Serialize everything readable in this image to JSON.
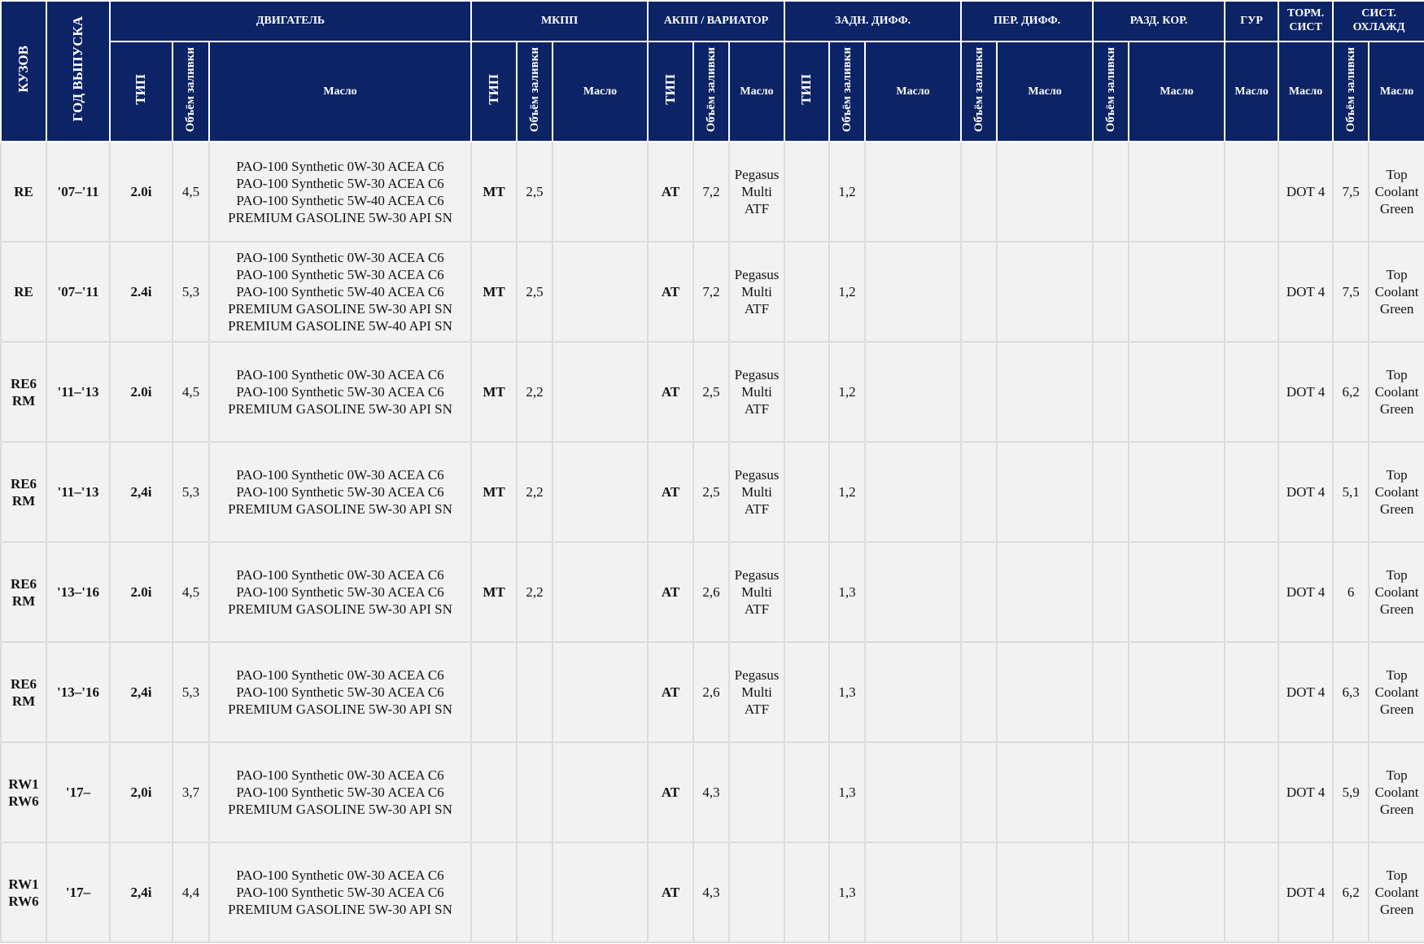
{
  "headers": {
    "kuzov": "КУЗОВ",
    "god": "ГОД ВЫПУСКА",
    "dvigatel": "ДВИГАТЕЛЬ",
    "mkpp": "МКПП",
    "akpp": "АКПП / ВАРИАТОР",
    "zadn": "ЗАДН. ДИФФ.",
    "per": "ПЕР. ДИФФ.",
    "razd": "РАЗД. КОР.",
    "gur": "ГУР",
    "torm_1": "ТОРМ.",
    "torm_2": "СИСТ",
    "sist_1": "СИСТ.",
    "sist_2": "ОХЛАЖД",
    "tip": "ТИП",
    "obem": "Объём заливки",
    "maslo": "Масло"
  },
  "rows": [
    {
      "kuzov": [
        "RE"
      ],
      "god": "'07–'11",
      "dv_tip": "2.0i",
      "dv_obem": "4,5",
      "dv_oil": [
        "PAO-100 Synthetic 0W-30 ACEA C6",
        "PAO-100 Synthetic 5W-30 ACEA C6",
        "PAO-100 Synthetic 5W-40 ACEA C6",
        "PREMIUM GASOLINE 5W-30 API SN"
      ],
      "mk_tip": "MT",
      "mk_obem": "2,5",
      "mk_oil": "",
      "ak_tip": "AT",
      "ak_obem": "7,2",
      "ak_oil": [
        "Pegasus",
        "Multi",
        "ATF"
      ],
      "zd_tip": "",
      "zd_obem": "1,2",
      "zd_oil": "",
      "pd_obem": "",
      "pd_oil": "",
      "rk_obem": "",
      "rk_oil": "",
      "gur": "",
      "torm": "DOT 4",
      "ox_obem": "7,5",
      "ox_oil": [
        "Top",
        "Coolant",
        "Green"
      ]
    },
    {
      "kuzov": [
        "RE"
      ],
      "god": "'07–'11",
      "dv_tip": "2.4i",
      "dv_obem": "5,3",
      "dv_oil": [
        "PAO-100 Synthetic 0W-30 ACEA C6",
        "PAO-100 Synthetic 5W-30 ACEA C6",
        "PAO-100 Synthetic 5W-40 ACEA C6",
        "PREMIUM GASOLINE 5W-30 API SN",
        "PREMIUM GASOLINE 5W-40 API SN"
      ],
      "mk_tip": "MT",
      "mk_obem": "2,5",
      "mk_oil": "",
      "ak_tip": "AT",
      "ak_obem": "7,2",
      "ak_oil": [
        "Pegasus",
        "Multi",
        "ATF"
      ],
      "zd_tip": "",
      "zd_obem": "1,2",
      "zd_oil": "",
      "pd_obem": "",
      "pd_oil": "",
      "rk_obem": "",
      "rk_oil": "",
      "gur": "",
      "torm": "DOT 4",
      "ox_obem": "7,5",
      "ox_oil": [
        "Top",
        "Coolant",
        "Green"
      ]
    },
    {
      "kuzov": [
        "RE6",
        "RM"
      ],
      "god": "'11–'13",
      "dv_tip": "2.0i",
      "dv_obem": "4,5",
      "dv_oil": [
        "PAO-100 Synthetic 0W-30 ACEA C6",
        "PAO-100 Synthetic 5W-30 ACEA C6",
        "PREMIUM GASOLINE 5W-30 API SN"
      ],
      "mk_tip": "MT",
      "mk_obem": "2,2",
      "mk_oil": "",
      "ak_tip": "AT",
      "ak_obem": "2,5",
      "ak_oil": [
        "Pegasus",
        "Multi",
        "ATF"
      ],
      "zd_tip": "",
      "zd_obem": "1,2",
      "zd_oil": "",
      "pd_obem": "",
      "pd_oil": "",
      "rk_obem": "",
      "rk_oil": "",
      "gur": "",
      "torm": "DOT 4",
      "ox_obem": "6,2",
      "ox_oil": [
        "Top",
        "Coolant",
        "Green"
      ]
    },
    {
      "kuzov": [
        "RE6",
        "RM"
      ],
      "god": "'11–'13",
      "dv_tip": "2,4i",
      "dv_obem": "5,3",
      "dv_oil": [
        "PAO-100 Synthetic 0W-30 ACEA C6",
        "PAO-100 Synthetic 5W-30 ACEA C6",
        "PREMIUM GASOLINE 5W-30 API SN"
      ],
      "mk_tip": "MT",
      "mk_obem": "2,2",
      "mk_oil": "",
      "ak_tip": "AT",
      "ak_obem": "2,5",
      "ak_oil": [
        "Pegasus",
        "Multi",
        "ATF"
      ],
      "zd_tip": "",
      "zd_obem": "1,2",
      "zd_oil": "",
      "pd_obem": "",
      "pd_oil": "",
      "rk_obem": "",
      "rk_oil": "",
      "gur": "",
      "torm": "DOT 4",
      "ox_obem": "5,1",
      "ox_oil": [
        "Top",
        "Coolant",
        "Green"
      ]
    },
    {
      "kuzov": [
        "RE6",
        "RM"
      ],
      "god": "'13–'16",
      "dv_tip": "2.0i",
      "dv_obem": "4,5",
      "dv_oil": [
        "PAO-100 Synthetic 0W-30 ACEA C6",
        "PAO-100 Synthetic 5W-30 ACEA C6",
        "PREMIUM GASOLINE 5W-30 API SN"
      ],
      "mk_tip": "MT",
      "mk_obem": "2,2",
      "mk_oil": "",
      "ak_tip": "AT",
      "ak_obem": "2,6",
      "ak_oil": [
        "Pegasus",
        "Multi",
        "ATF"
      ],
      "zd_tip": "",
      "zd_obem": "1,3",
      "zd_oil": "",
      "pd_obem": "",
      "pd_oil": "",
      "rk_obem": "",
      "rk_oil": "",
      "gur": "",
      "torm": "DOT 4",
      "ox_obem": "6",
      "ox_oil": [
        "Top",
        "Coolant",
        "Green"
      ]
    },
    {
      "kuzov": [
        "RE6",
        "RM"
      ],
      "god": "'13–'16",
      "dv_tip": "2,4i",
      "dv_obem": "5,3",
      "dv_oil": [
        "PAO-100 Synthetic 0W-30 ACEA C6",
        "PAO-100 Synthetic 5W-30 ACEA C6",
        "PREMIUM GASOLINE 5W-30 API SN"
      ],
      "mk_tip": "",
      "mk_obem": "",
      "mk_oil": "",
      "ak_tip": "AT",
      "ak_obem": "2,6",
      "ak_oil": [
        "Pegasus",
        "Multi",
        "ATF"
      ],
      "zd_tip": "",
      "zd_obem": "1,3",
      "zd_oil": "",
      "pd_obem": "",
      "pd_oil": "",
      "rk_obem": "",
      "rk_oil": "",
      "gur": "",
      "torm": "DOT 4",
      "ox_obem": "6,3",
      "ox_oil": [
        "Top",
        "Coolant",
        "Green"
      ]
    },
    {
      "kuzov": [
        "RW1",
        "RW6"
      ],
      "god": "'17–",
      "dv_tip": "2,0i",
      "dv_obem": "3,7",
      "dv_oil": [
        "PAO-100 Synthetic 0W-30 ACEA C6",
        "PAO-100 Synthetic 5W-30 ACEA C6",
        "PREMIUM GASOLINE 5W-30 API SN"
      ],
      "mk_tip": "",
      "mk_obem": "",
      "mk_oil": "",
      "ak_tip": "AT",
      "ak_obem": "4,3",
      "ak_oil": [],
      "zd_tip": "",
      "zd_obem": "1,3",
      "zd_oil": "",
      "pd_obem": "",
      "pd_oil": "",
      "rk_obem": "",
      "rk_oil": "",
      "gur": "",
      "torm": "DOT 4",
      "ox_obem": "5,9",
      "ox_oil": [
        "Top",
        "Coolant",
        "Green"
      ]
    },
    {
      "kuzov": [
        "RW1",
        "RW6"
      ],
      "god": "'17–",
      "dv_tip": "2,4i",
      "dv_obem": "4,4",
      "dv_oil": [
        "PAO-100 Synthetic 0W-30 ACEA C6",
        "PAO-100 Synthetic 5W-30 ACEA C6",
        "PREMIUM GASOLINE 5W-30 API SN"
      ],
      "mk_tip": "",
      "mk_obem": "",
      "mk_oil": "",
      "ak_tip": "AT",
      "ak_obem": "4,3",
      "ak_oil": [],
      "zd_tip": "",
      "zd_obem": "1,3",
      "zd_oil": "",
      "pd_obem": "",
      "pd_oil": "",
      "rk_obem": "",
      "rk_oil": "",
      "gur": "",
      "torm": "DOT 4",
      "ox_obem": "6,2",
      "ox_oil": [
        "Top",
        "Coolant",
        "Green"
      ]
    }
  ]
}
